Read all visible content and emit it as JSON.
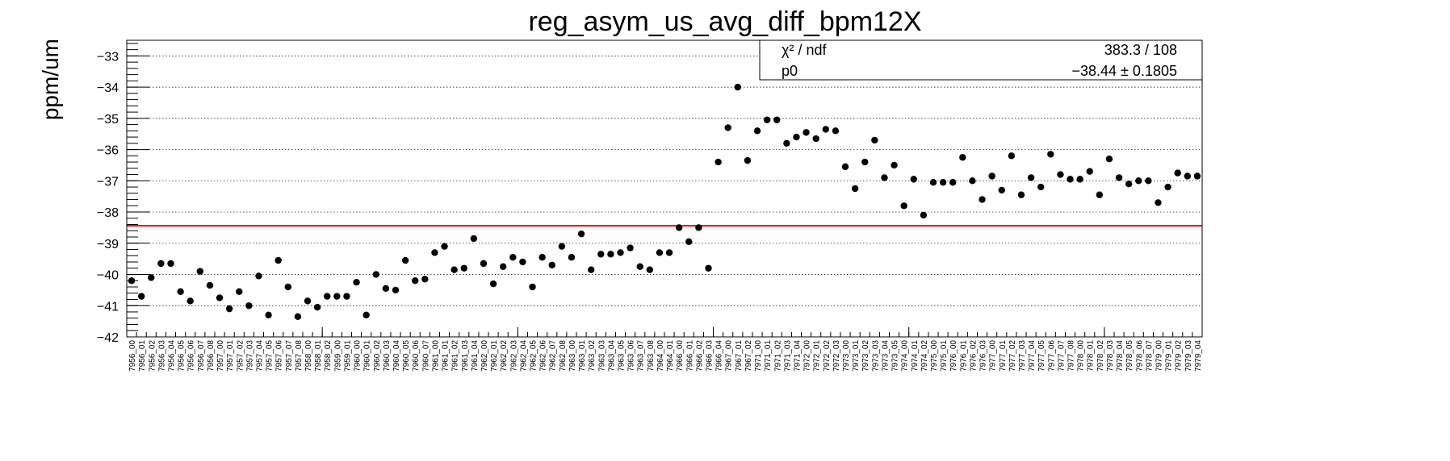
{
  "chart_data": {
    "type": "scatter",
    "title": "reg_asym_us_avg_diff_bpm12X",
    "ylabel": "ppm/um",
    "xlabel": "",
    "ylim": [
      -42,
      -32.5
    ],
    "yticks": [
      -42,
      -41,
      -40,
      -39,
      -38,
      -37,
      -36,
      -35,
      -34,
      -33
    ],
    "grid": "horizontal",
    "categories": [
      "7956_00",
      "7956_01",
      "7956_02",
      "7956_03",
      "7956_04",
      "7956_05",
      "7956_06",
      "7956_07",
      "7956_08",
      "7957_00",
      "7957_01",
      "7957_02",
      "7957_03",
      "7957_04",
      "7957_05",
      "7957_06",
      "7957_07",
      "7957_08",
      "7958_00",
      "7958_01",
      "7958_02",
      "7959_00",
      "7959_01",
      "7960_00",
      "7960_01",
      "7960_02",
      "7960_03",
      "7960_04",
      "7960_05",
      "7960_06",
      "7960_07",
      "7961_00",
      "7961_01",
      "7961_02",
      "7961_03",
      "7961_04",
      "7962_00",
      "7962_01",
      "7962_02",
      "7962_03",
      "7962_04",
      "7962_05",
      "7962_06",
      "7962_07",
      "7962_08",
      "7963_00",
      "7963_01",
      "7963_02",
      "7963_03",
      "7963_04",
      "7963_05",
      "7963_06",
      "7963_07",
      "7963_08",
      "7964_00",
      "7964_01",
      "7966_00",
      "7966_01",
      "7966_02",
      "7966_03",
      "7966_04",
      "7967_00",
      "7967_01",
      "7967_02",
      "7971_00",
      "7971_01",
      "7971_02",
      "7971_03",
      "7971_04",
      "7972_00",
      "7972_01",
      "7972_02",
      "7972_03",
      "7973_00",
      "7973_01",
      "7973_02",
      "7973_03",
      "7973_04",
      "7973_05",
      "7974_00",
      "7974_01",
      "7974_02",
      "7975_00",
      "7975_01",
      "7976_00",
      "7976_01",
      "7976_02",
      "7976_03",
      "7977_00",
      "7977_01",
      "7977_02",
      "7977_03",
      "7977_04",
      "7977_05",
      "7977_06",
      "7977_07",
      "7977_08",
      "7978_00",
      "7978_01",
      "7978_02",
      "7978_03",
      "7978_04",
      "7978_05",
      "7978_06",
      "7978_07",
      "7979_00",
      "7979_01",
      "7979_02",
      "7979_03",
      "7979_04"
    ],
    "values": [
      -40.2,
      -40.7,
      -40.1,
      -39.65,
      -39.65,
      -40.55,
      -40.85,
      -39.9,
      -40.35,
      -40.75,
      -41.1,
      -40.55,
      -41.0,
      -40.05,
      -41.3,
      -39.55,
      -40.4,
      -41.35,
      -40.85,
      -41.05,
      -40.7,
      -40.7,
      -40.7,
      -40.25,
      -41.3,
      -40.0,
      -40.45,
      -40.5,
      -39.55,
      -40.2,
      -40.15,
      -39.3,
      -39.1,
      -39.85,
      -39.8,
      -38.85,
      -39.65,
      -40.3,
      -39.75,
      -39.45,
      -39.6,
      -40.4,
      -39.45,
      -39.7,
      -39.1,
      -39.45,
      -38.7,
      -39.85,
      -39.35,
      -39.35,
      -39.3,
      -39.15,
      -39.75,
      -39.85,
      -39.3,
      -39.3,
      -38.5,
      -38.95,
      -38.5,
      -39.8,
      -36.4,
      -35.3,
      -34.0,
      -36.35,
      -35.4,
      -35.05,
      -35.05,
      -35.8,
      -35.6,
      -35.45,
      -35.65,
      -35.35,
      -35.4,
      -36.55,
      -37.25,
      -36.4,
      -35.7,
      -36.9,
      -36.5,
      -37.8,
      -36.95,
      -38.1,
      -37.05,
      -37.05,
      -37.05,
      -36.25,
      -37.0,
      -37.6,
      -36.85,
      -37.3,
      -36.2,
      -37.45,
      -36.9,
      -37.2,
      -36.15,
      -36.8,
      -36.95,
      -36.95,
      -36.7,
      -37.45,
      -36.3,
      -36.9,
      -37.1,
      -37.0,
      -37.0,
      -37.7,
      -37.2,
      -36.75,
      -36.85,
      -36.85
    ],
    "fit": {
      "p0": -38.44,
      "color": "#ff0000"
    },
    "stats_box": {
      "row1_label": "χ² / ndf",
      "row1_value": "383.3 / 108",
      "row2_label": "p0",
      "row2_value": "−38.44 ± 0.1805"
    },
    "marker_color": "#000000"
  }
}
